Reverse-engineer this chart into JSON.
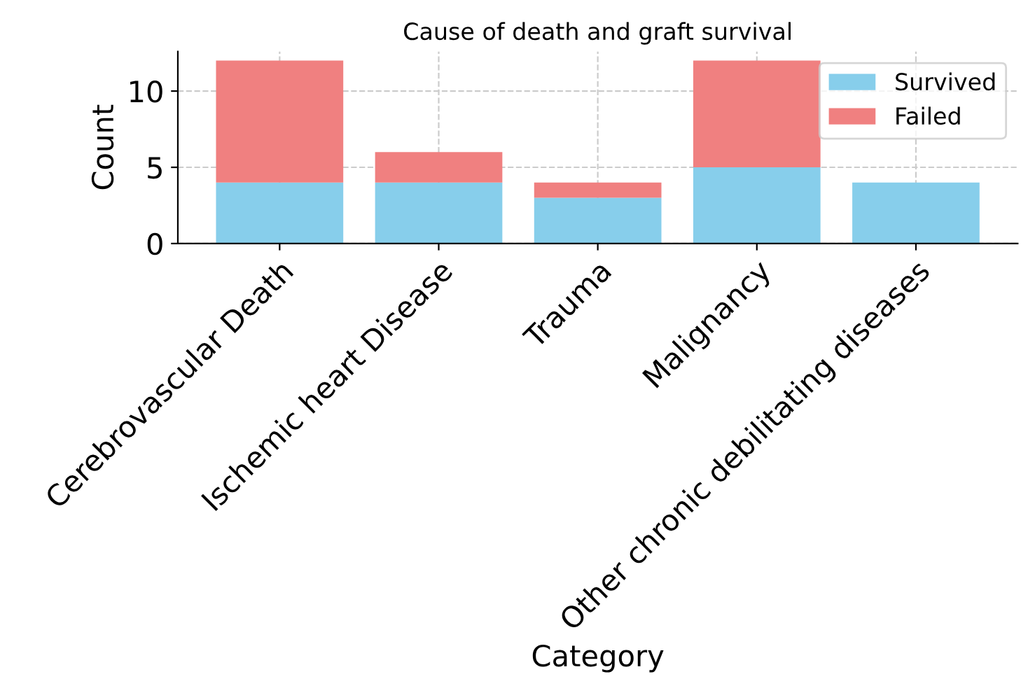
{
  "chart_data": {
    "type": "bar",
    "title": "Cause of death and graft survival",
    "xlabel": "Category",
    "ylabel": "Count",
    "categories": [
      "Cerebrovascular Death",
      "Ischemic heart Disease",
      "Trauma",
      "Malignancy",
      "Other chronic debilitating diseases"
    ],
    "series": [
      {
        "name": "Survived",
        "color": "#87ceeb",
        "values": [
          4,
          4,
          3,
          5,
          4
        ]
      },
      {
        "name": "Failed",
        "color": "#f08080",
        "values": [
          8,
          2,
          1,
          7,
          0
        ]
      }
    ],
    "stacked": true,
    "ylim": [
      0,
      12.6
    ],
    "yticks": [
      0,
      5,
      10
    ],
    "grid": true,
    "legend": "top right"
  }
}
